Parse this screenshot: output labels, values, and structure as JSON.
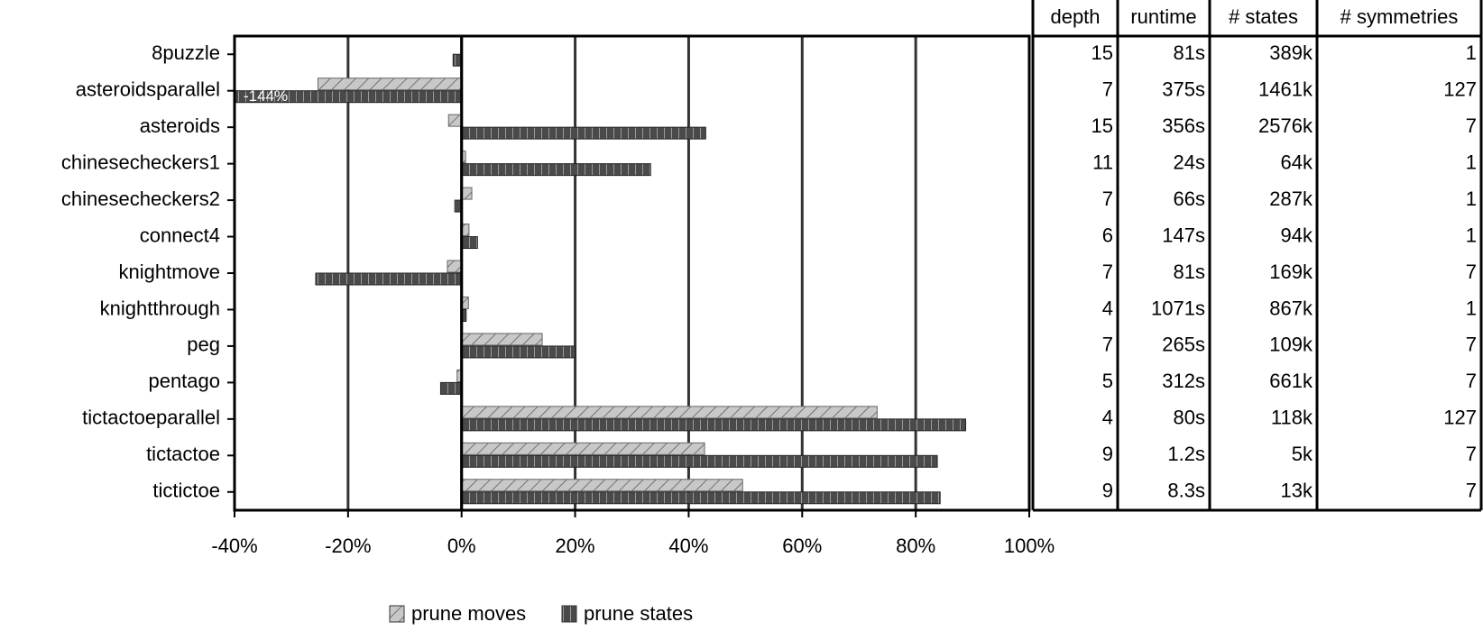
{
  "chart_data": {
    "type": "bar",
    "orientation": "horizontal",
    "categories": [
      "8puzzle",
      "asteroidsparallel",
      "asteroids",
      "chinesecheckers1",
      "chinesecheckers2",
      "connect4",
      "knightmove",
      "knightthrough",
      "peg",
      "pentago",
      "tictactoeparallel",
      "tictactoe",
      "tictictoe"
    ],
    "series": [
      {
        "name": "prune moves",
        "color": "#c8c8c8",
        "values": [
          0,
          -25.3,
          -2.3,
          0.7,
          1.8,
          1.3,
          -2.5,
          1.2,
          14.2,
          -0.8,
          73.2,
          42.8,
          49.5
        ]
      },
      {
        "name": "prune states",
        "color": "#4a4a4a",
        "values": [
          -1.5,
          -144,
          43,
          33.3,
          -1.2,
          2.8,
          -25.7,
          0.8,
          20,
          -3.7,
          88.8,
          83.8,
          84.3
        ],
        "value_labels": [
          null,
          "-144%",
          null,
          null,
          null,
          null,
          null,
          null,
          null,
          null,
          null,
          null,
          null
        ]
      }
    ],
    "xlim": [
      -40,
      100
    ],
    "xticks": [
      {
        "value": -40,
        "label": "-40%"
      },
      {
        "value": -20,
        "label": "-20%"
      },
      {
        "value": 0,
        "label": "0%"
      },
      {
        "value": 20,
        "label": "20%"
      },
      {
        "value": 40,
        "label": "40%"
      },
      {
        "value": 60,
        "label": "60%"
      },
      {
        "value": 80,
        "label": "80%"
      },
      {
        "value": 100,
        "label": "100%"
      }
    ],
    "grid": true,
    "legend": "bottom"
  },
  "table": {
    "columns": [
      "depth",
      "runtime",
      "# states",
      "# symmetries"
    ],
    "rows": [
      [
        15,
        "81s",
        "389k",
        1
      ],
      [
        7,
        "375s",
        "1461k",
        127
      ],
      [
        15,
        "356s",
        "2576k",
        7
      ],
      [
        11,
        "24s",
        "64k",
        1
      ],
      [
        7,
        "66s",
        "287k",
        1
      ],
      [
        6,
        "147s",
        "94k",
        1
      ],
      [
        7,
        "81s",
        "169k",
        7
      ],
      [
        4,
        "1071s",
        "867k",
        1
      ],
      [
        7,
        "265s",
        "109k",
        7
      ],
      [
        5,
        "312s",
        "661k",
        7
      ],
      [
        4,
        "80s",
        "118k",
        127
      ],
      [
        9,
        "1.2s",
        "5k",
        7
      ],
      [
        9,
        "8.3s",
        "13k",
        7
      ]
    ]
  }
}
